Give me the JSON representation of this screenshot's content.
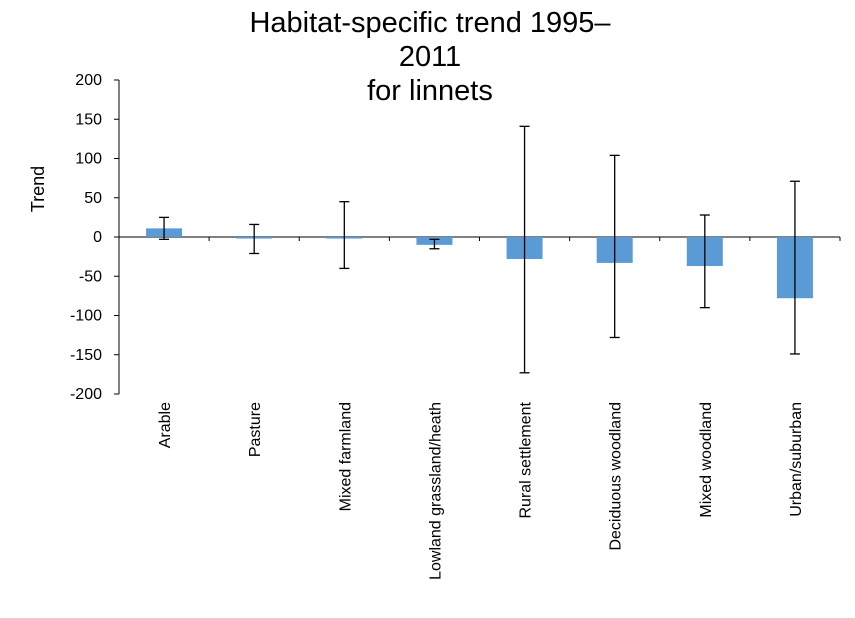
{
  "chart_data": {
    "type": "bar",
    "title_lines": [
      "Habitat-specific trend 1995–2011",
      "for linnets"
    ],
    "xlabel": "",
    "ylabel": "Trend",
    "ylim": [
      -200,
      200
    ],
    "yticks": [
      200,
      150,
      100,
      50,
      0,
      -50,
      -100,
      -150,
      -200
    ],
    "grid": false,
    "legend": "none",
    "categories": [
      "Arable",
      "Pasture",
      "Mixed farmland",
      "Lowland grassland/heath",
      "Rural settlement",
      "Deciduous woodland",
      "Mixed woodland",
      "Urban/suburban"
    ],
    "values": [
      11,
      -2,
      -2,
      -10,
      -28,
      -33,
      -37,
      -78
    ],
    "error_upper": [
      25,
      16,
      45,
      -3,
      141,
      104,
      28,
      71
    ],
    "error_lower": [
      -3,
      -21,
      -40,
      -15,
      -173,
      -128,
      -90,
      -149
    ],
    "colors": {
      "bar": "#5b9bd5",
      "axis": "#000000",
      "error": "#000000"
    }
  }
}
